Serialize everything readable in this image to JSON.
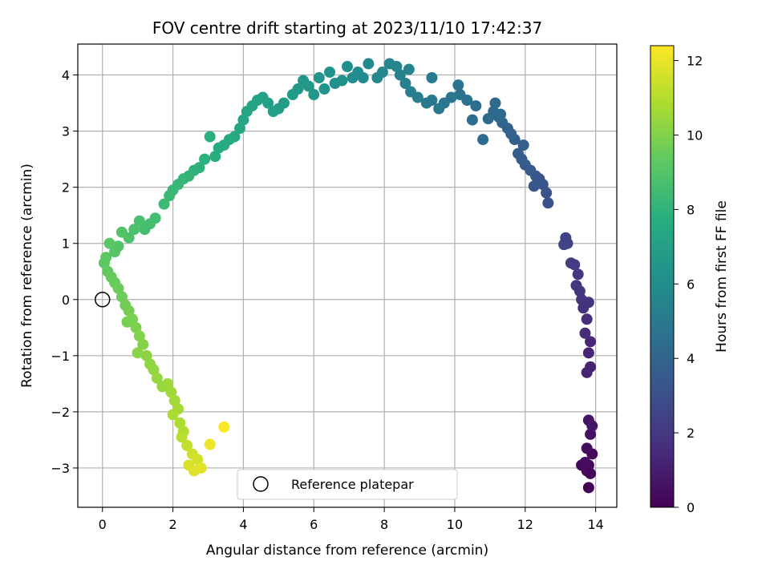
{
  "chart_data": {
    "type": "scatter",
    "title": "FOV centre drift starting at 2023/11/10 17:42:37",
    "xlabel": "Angular distance from reference (arcmin)",
    "ylabel": "Rotation from reference (arcmin)",
    "xlim": [
      -0.7,
      14.6
    ],
    "ylim": [
      -3.7,
      4.55
    ],
    "xticks": [
      0,
      2,
      4,
      6,
      8,
      10,
      12,
      14
    ],
    "xtick_labels": [
      "0",
      "2",
      "4",
      "6",
      "8",
      "10",
      "12",
      "14"
    ],
    "yticks": [
      -3,
      -2,
      -1,
      0,
      1,
      2,
      3,
      4
    ],
    "ytick_labels": [
      "−3",
      "−2",
      "−1",
      "0",
      "1",
      "2",
      "3",
      "4"
    ],
    "grid": true,
    "colorscale": "viridis",
    "colorbar": {
      "label": "Hours from first FF file",
      "range": [
        0,
        12.4
      ],
      "ticks": [
        0,
        2,
        4,
        6,
        8,
        10,
        12
      ],
      "tick_labels": [
        "0",
        "2",
        "4",
        "6",
        "8",
        "10",
        "12"
      ]
    },
    "reference": {
      "label": "Reference platepar",
      "x": 0.0,
      "y": 0.0
    },
    "legend_placement": "lower center",
    "points": [
      [
        13.8,
        -3.35,
        0.05
      ],
      [
        13.6,
        -2.95,
        0.15
      ],
      [
        13.8,
        -2.95,
        0.2
      ],
      [
        13.9,
        -2.75,
        0.3
      ],
      [
        13.7,
        -2.9,
        0.35
      ],
      [
        13.75,
        -2.65,
        0.45
      ],
      [
        13.85,
        -2.4,
        0.55
      ],
      [
        13.75,
        -3.05,
        0.4
      ],
      [
        13.85,
        -3.1,
        0.25
      ],
      [
        13.8,
        -2.15,
        0.7
      ],
      [
        13.9,
        -2.25,
        0.75
      ],
      [
        13.85,
        -1.2,
        1.2
      ],
      [
        13.75,
        -1.3,
        1.25
      ],
      [
        13.8,
        -0.95,
        1.35
      ],
      [
        13.85,
        -0.75,
        1.45
      ],
      [
        13.7,
        -0.6,
        1.55
      ],
      [
        13.75,
        -0.35,
        1.65
      ],
      [
        13.65,
        -0.15,
        1.75
      ],
      [
        13.8,
        -0.05,
        1.85
      ],
      [
        13.6,
        0.0,
        1.9
      ],
      [
        13.55,
        0.15,
        2.0
      ],
      [
        13.45,
        0.25,
        2.05
      ],
      [
        13.5,
        0.45,
        2.1
      ],
      [
        13.4,
        0.62,
        2.2
      ],
      [
        13.3,
        0.65,
        2.25
      ],
      [
        13.2,
        1.0,
        2.45
      ],
      [
        13.15,
        1.1,
        2.5
      ],
      [
        13.1,
        0.98,
        2.55
      ],
      [
        12.65,
        1.72,
        3.1
      ],
      [
        12.6,
        1.9,
        3.15
      ],
      [
        12.5,
        2.05,
        3.2
      ],
      [
        12.4,
        2.15,
        3.3
      ],
      [
        12.25,
        2.02,
        3.35
      ],
      [
        12.3,
        2.2,
        3.45
      ],
      [
        12.15,
        2.3,
        3.5
      ],
      [
        12.0,
        2.4,
        3.55
      ],
      [
        11.9,
        2.5,
        3.6
      ],
      [
        11.8,
        2.6,
        3.7
      ],
      [
        11.95,
        2.75,
        3.75
      ],
      [
        11.7,
        2.85,
        3.8
      ],
      [
        11.6,
        2.95,
        3.9
      ],
      [
        11.5,
        3.05,
        3.95
      ],
      [
        11.35,
        3.15,
        4.0
      ],
      [
        11.25,
        3.25,
        4.1
      ],
      [
        11.1,
        3.35,
        4.2
      ],
      [
        11.15,
        3.5,
        4.25
      ],
      [
        11.3,
        3.3,
        4.3
      ],
      [
        10.95,
        3.22,
        4.35
      ],
      [
        10.8,
        2.85,
        4.4
      ],
      [
        10.5,
        3.2,
        4.5
      ],
      [
        10.6,
        3.45,
        4.55
      ],
      [
        10.35,
        3.55,
        4.65
      ],
      [
        10.15,
        3.65,
        4.7
      ],
      [
        10.1,
        3.82,
        4.75
      ],
      [
        9.9,
        3.6,
        4.85
      ],
      [
        9.7,
        3.5,
        4.9
      ],
      [
        9.55,
        3.4,
        5.0
      ],
      [
        9.35,
        3.55,
        5.05
      ],
      [
        9.2,
        3.5,
        5.1
      ],
      [
        9.35,
        3.95,
        5.15
      ],
      [
        8.95,
        3.6,
        5.25
      ],
      [
        8.75,
        3.7,
        5.3
      ],
      [
        8.6,
        3.85,
        5.4
      ],
      [
        8.45,
        4.0,
        5.45
      ],
      [
        8.7,
        4.1,
        5.5
      ],
      [
        8.35,
        4.15,
        5.6
      ],
      [
        8.15,
        4.2,
        5.65
      ],
      [
        7.95,
        4.05,
        5.7
      ],
      [
        7.8,
        3.95,
        5.8
      ],
      [
        7.55,
        4.2,
        5.85
      ],
      [
        7.4,
        3.95,
        5.9
      ],
      [
        7.25,
        4.05,
        6.0
      ],
      [
        7.1,
        3.95,
        6.05
      ],
      [
        6.95,
        4.15,
        6.1
      ],
      [
        6.8,
        3.9,
        6.2
      ],
      [
        6.6,
        3.85,
        6.25
      ],
      [
        6.45,
        4.05,
        6.3
      ],
      [
        6.3,
        3.75,
        6.4
      ],
      [
        6.15,
        3.95,
        6.45
      ],
      [
        6.0,
        3.65,
        6.5
      ],
      [
        5.85,
        3.8,
        6.6
      ],
      [
        5.7,
        3.9,
        6.65
      ],
      [
        5.55,
        3.75,
        6.7
      ],
      [
        5.4,
        3.65,
        6.8
      ],
      [
        5.15,
        3.5,
        6.85
      ],
      [
        5.0,
        3.4,
        6.9
      ],
      [
        4.85,
        3.35,
        7.0
      ],
      [
        4.7,
        3.5,
        7.05
      ],
      [
        4.55,
        3.6,
        7.1
      ],
      [
        4.4,
        3.55,
        7.2
      ],
      [
        4.25,
        3.45,
        7.25
      ],
      [
        4.1,
        3.35,
        7.3
      ],
      [
        4.0,
        3.2,
        7.4
      ],
      [
        3.9,
        3.05,
        7.45
      ],
      [
        3.75,
        2.9,
        7.5
      ],
      [
        3.6,
        2.85,
        7.6
      ],
      [
        3.45,
        2.75,
        7.65
      ],
      [
        3.3,
        2.7,
        7.7
      ],
      [
        3.2,
        2.55,
        7.8
      ],
      [
        3.05,
        2.9,
        7.85
      ],
      [
        2.9,
        2.5,
        7.9
      ],
      [
        2.75,
        2.35,
        8.0
      ],
      [
        2.6,
        2.3,
        8.05
      ],
      [
        2.45,
        2.2,
        8.1
      ],
      [
        2.3,
        2.15,
        8.2
      ],
      [
        2.15,
        2.05,
        8.25
      ],
      [
        2.0,
        1.95,
        8.3
      ],
      [
        1.9,
        1.85,
        8.4
      ],
      [
        1.75,
        1.7,
        8.45
      ],
      [
        1.5,
        1.45,
        8.6
      ],
      [
        1.35,
        1.35,
        8.65
      ],
      [
        1.2,
        1.25,
        8.7
      ],
      [
        1.05,
        1.4,
        8.8
      ],
      [
        0.9,
        1.25,
        8.85
      ],
      [
        0.75,
        1.1,
        8.9
      ],
      [
        0.55,
        1.2,
        9.0
      ],
      [
        0.45,
        0.95,
        9.05
      ],
      [
        0.35,
        0.85,
        9.1
      ],
      [
        0.2,
        1.0,
        9.2
      ],
      [
        0.1,
        0.75,
        9.25
      ],
      [
        0.05,
        0.65,
        9.3
      ],
      [
        0.15,
        0.5,
        9.4
      ],
      [
        0.25,
        0.4,
        9.45
      ],
      [
        0.35,
        0.3,
        9.5
      ],
      [
        0.45,
        0.2,
        9.6
      ],
      [
        0.55,
        0.05,
        9.65
      ],
      [
        0.65,
        -0.1,
        9.7
      ],
      [
        0.75,
        -0.2,
        9.8
      ],
      [
        0.7,
        -0.4,
        9.85
      ],
      [
        0.85,
        -0.35,
        9.9
      ],
      [
        0.95,
        -0.5,
        10.0
      ],
      [
        1.05,
        -0.65,
        10.05
      ],
      [
        1.15,
        -0.8,
        10.1
      ],
      [
        1.0,
        -0.95,
        10.2
      ],
      [
        1.25,
        -1.0,
        10.25
      ],
      [
        1.35,
        -1.15,
        10.3
      ],
      [
        1.45,
        -1.25,
        10.4
      ],
      [
        1.55,
        -1.4,
        10.45
      ],
      [
        1.7,
        -1.55,
        10.5
      ],
      [
        1.85,
        -1.5,
        10.6
      ],
      [
        1.95,
        -1.65,
        10.65
      ],
      [
        2.05,
        -1.8,
        10.7
      ],
      [
        2.15,
        -1.95,
        10.8
      ],
      [
        2.0,
        -2.05,
        10.85
      ],
      [
        2.2,
        -2.2,
        10.9
      ],
      [
        2.3,
        -2.35,
        11.0
      ],
      [
        2.25,
        -2.45,
        11.1
      ],
      [
        2.4,
        -2.6,
        11.3
      ],
      [
        2.55,
        -2.75,
        11.5
      ],
      [
        2.7,
        -2.85,
        11.6
      ],
      [
        2.45,
        -2.95,
        11.7
      ],
      [
        2.6,
        -3.05,
        11.8
      ],
      [
        2.8,
        -3.0,
        11.9
      ],
      [
        3.05,
        -2.58,
        12.1
      ],
      [
        3.45,
        -2.27,
        12.35
      ]
    ]
  }
}
